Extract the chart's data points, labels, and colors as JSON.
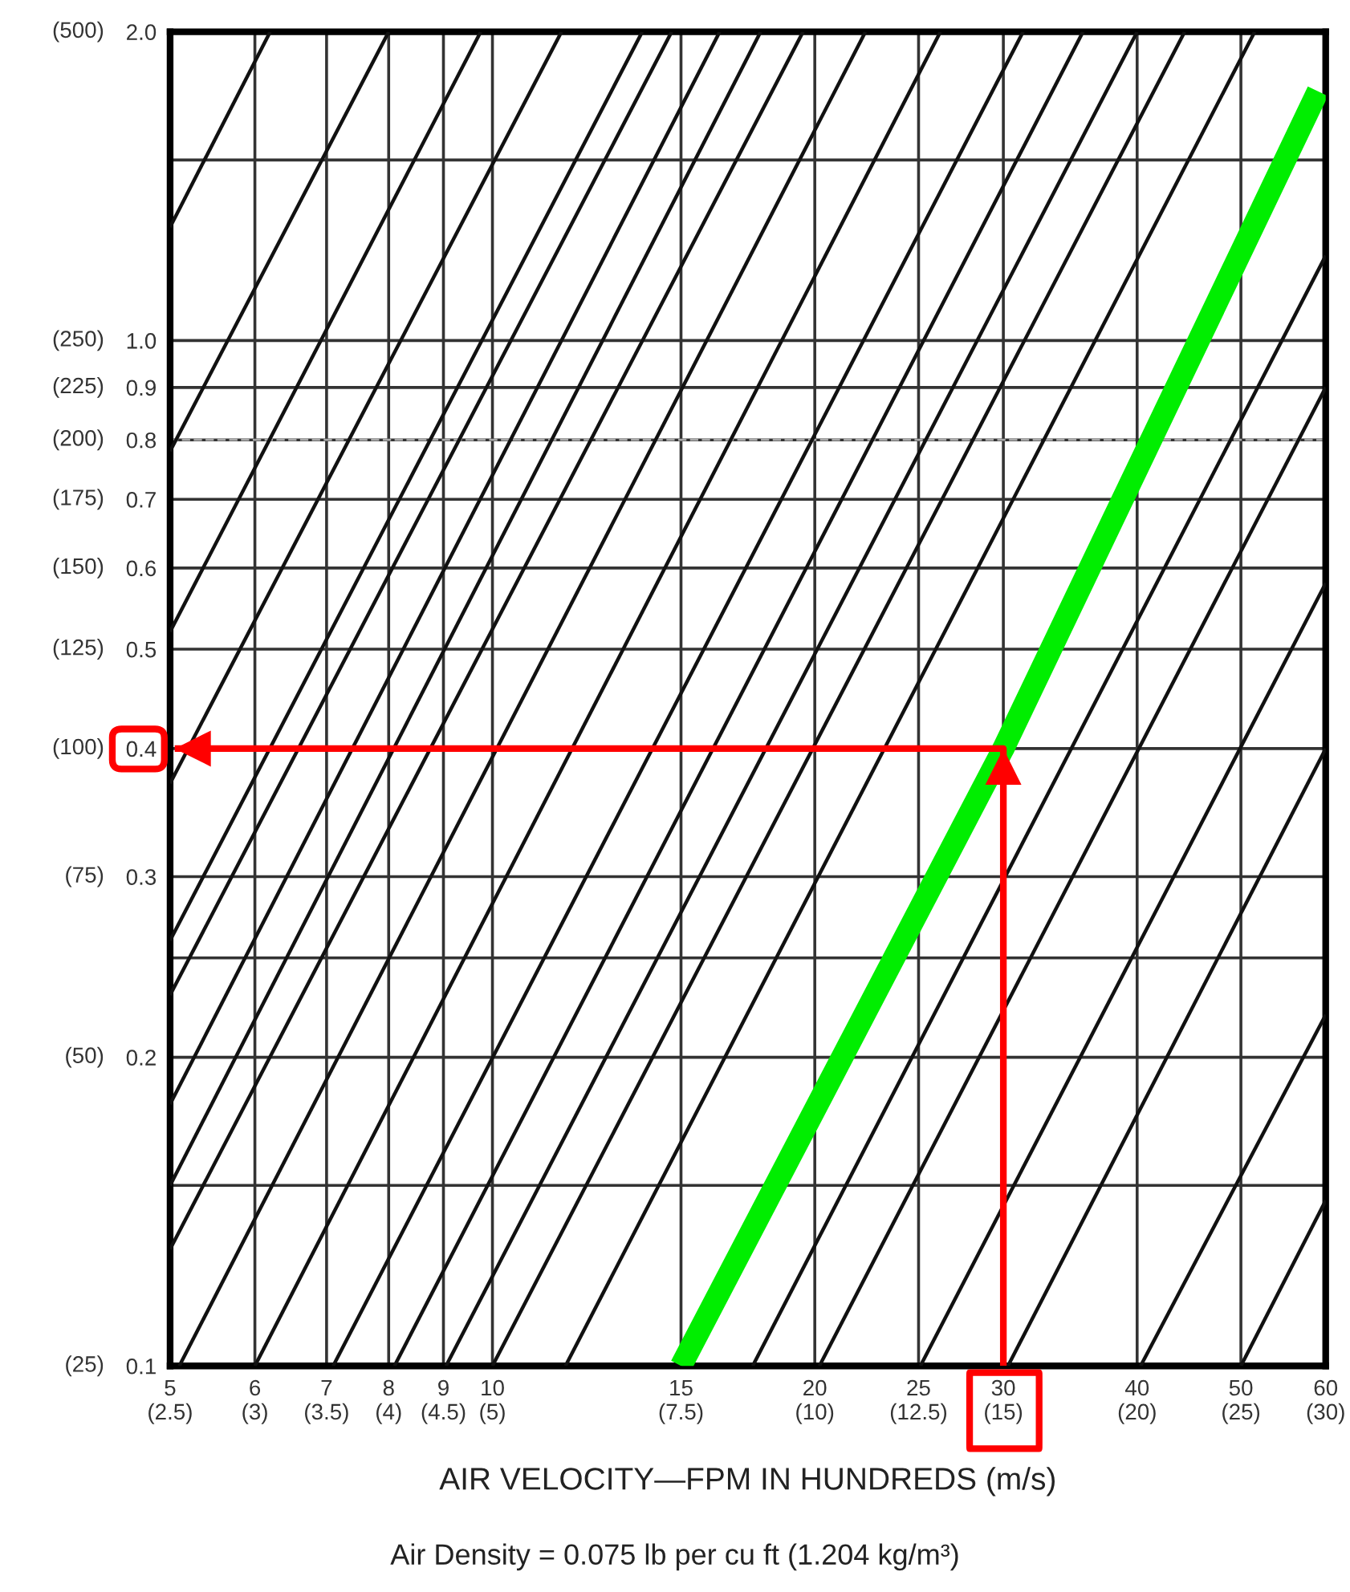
{
  "chart_data": {
    "type": "line",
    "log": "xy",
    "xlabel": "AIR VELOCITY—FPM IN HUNDREDS (m/s)",
    "annotations": [
      "Air Density = 0.075 lb per cu ft (1.204 kg/m³)",
      "(25)",
      "(50)",
      "(75)",
      "(100)",
      "(125)",
      "(150)",
      "(175)",
      "(200)",
      "(225)",
      "(250)",
      "(500)",
      "(2.5)",
      "(3)",
      "(3.5)",
      "(4)",
      "(4.5)",
      "(5)",
      "(7.5)",
      "(10)",
      "(12.5)",
      "(15)",
      "(20)",
      "(25)",
      "(30)"
    ],
    "xlim": [
      5,
      60
    ],
    "ylim": [
      0.1,
      2.0
    ],
    "xticks": [
      5,
      6,
      7,
      8,
      9,
      10,
      15,
      20,
      25,
      30,
      40,
      50,
      60
    ],
    "yticks": [
      0.1,
      {
        "value": 0.15,
        "label": null
      },
      0.2,
      {
        "value": 0.25,
        "label": null
      },
      0.3,
      0.4,
      0.5,
      0.6,
      0.7,
      0.8,
      0.9,
      {
        "value": 1.0,
        "label": "1.0"
      },
      {
        "value": 1.5,
        "label": null
      },
      {
        "value": 2.0,
        "label": "2.0"
      }
    ],
    "grid": true,
    "line_style": "solid",
    "ref_lines": [
      {
        "axis": "y",
        "value": 0.8,
        "color": "#aaaaaa",
        "line_style": "dashed"
      }
    ],
    "series": [
      {
        "color": "#111111",
        "x": [
          5,
          6.2
        ],
        "values": [
          1.29,
          2.0
        ]
      },
      {
        "color": "#111111",
        "x": [
          5,
          8.0
        ],
        "values": [
          0.78,
          2.0
        ]
      },
      {
        "color": "#111111",
        "x": [
          5,
          9.75
        ],
        "values": [
          0.52,
          2.0
        ]
      },
      {
        "color": "#111111",
        "x": [
          5,
          11.6
        ],
        "values": [
          0.37,
          2.0
        ]
      },
      {
        "color": "#111111",
        "x": [
          5,
          13.8
        ],
        "values": [
          0.26,
          2.0
        ]
      },
      {
        "color": "#111111",
        "x": [
          5,
          14.7
        ],
        "values": [
          0.23,
          2.0
        ]
      },
      {
        "color": "#111111",
        "x": [
          5,
          16.3
        ],
        "values": [
          0.18,
          2.0
        ]
      },
      {
        "color": "#111111",
        "x": [
          5,
          17.8
        ],
        "values": [
          0.15,
          2.0
        ]
      },
      {
        "color": "#111111",
        "x": [
          5,
          19.5
        ],
        "values": [
          0.13,
          2.0
        ]
      },
      {
        "color": "#111111",
        "x": [
          5.1,
          22.3
        ],
        "values": [
          0.1,
          2.0
        ]
      },
      {
        "color": "#111111",
        "x": [
          6.0,
          26.2
        ],
        "values": [
          0.1,
          2.0
        ]
      },
      {
        "color": "#111111",
        "x": [
          7.1,
          31.3
        ],
        "values": [
          0.1,
          2.0
        ]
      },
      {
        "color": "#111111",
        "x": [
          8.1,
          35.6
        ],
        "values": [
          0.1,
          2.0
        ]
      },
      {
        "color": "#111111",
        "x": [
          9.05,
          40
        ],
        "values": [
          0.1,
          2.0
        ]
      },
      {
        "color": "#111111",
        "x": [
          10.0,
          44.3
        ],
        "values": [
          0.1,
          2.0
        ]
      },
      {
        "color": "#111111",
        "x": [
          11.7,
          51.5
        ],
        "values": [
          0.1,
          2.0
        ]
      },
      {
        "color": "#111111",
        "x": [
          17.5,
          60
        ],
        "values": [
          0.1,
          1.21
        ]
      },
      {
        "color": "#111111",
        "x": [
          20.2,
          60
        ],
        "values": [
          0.1,
          0.9
        ]
      },
      {
        "color": "#111111",
        "x": [
          25.1,
          60
        ],
        "values": [
          0.1,
          0.58
        ]
      },
      {
        "color": "#111111",
        "x": [
          30.3,
          60
        ],
        "values": [
          0.1,
          0.4
        ]
      },
      {
        "color": "#111111",
        "x": [
          40.3,
          60
        ],
        "values": [
          0.1,
          0.22
        ]
      },
      {
        "color": "#111111",
        "x": [
          50,
          60
        ],
        "values": [
          0.1,
          0.145
        ]
      },
      {
        "color": "#00ee00",
        "x": [
          15,
          30,
          59
        ],
        "values": [
          0.1,
          0.4,
          1.75
        ]
      },
      {
        "color": "#ff0000",
        "x": [
          30,
          30,
          5.05
        ],
        "values": [
          0.1,
          0.4,
          0.4
        ]
      }
    ]
  }
}
